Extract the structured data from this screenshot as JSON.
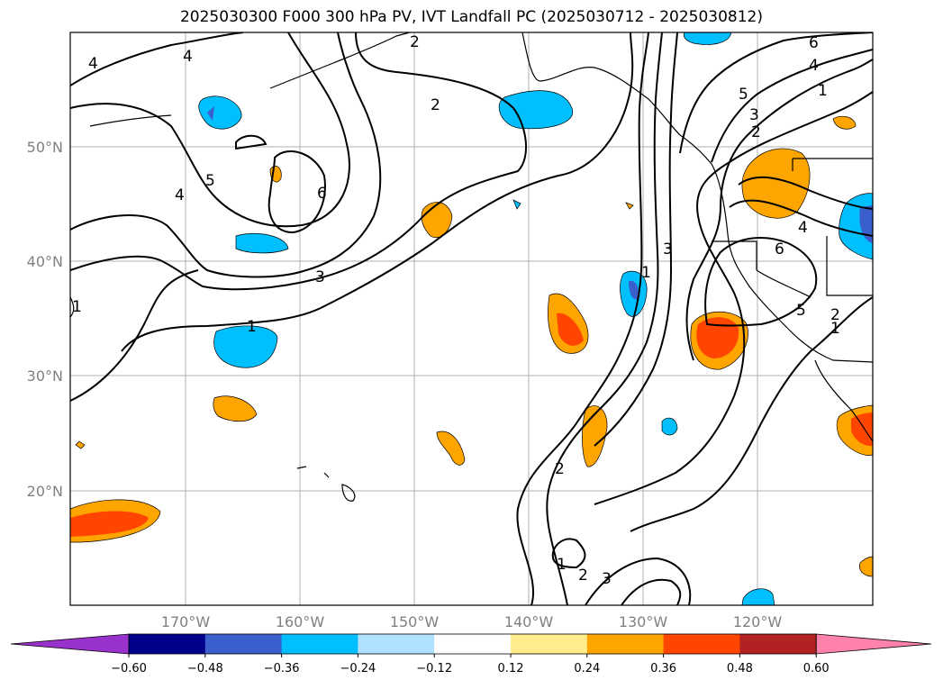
{
  "title": "2025030300 F000 300 hPa PV, IVT Landfall PC (2025030712 - 2025030812)",
  "map": {
    "lat_ticks": [
      "50°N",
      "40°N",
      "30°N",
      "20°N"
    ],
    "lon_ticks": [
      "170°W",
      "160°W",
      "150°W",
      "140°W",
      "130°W",
      "120°W"
    ],
    "extent": {
      "lon": [
        -180,
        -110
      ],
      "lat": [
        10,
        60
      ]
    },
    "grid": true
  },
  "colorbar": {
    "ticks": [
      "−0.60",
      "−0.48",
      "−0.36",
      "−0.24",
      "−0.12",
      "0.12",
      "0.24",
      "0.36",
      "0.48",
      "0.60"
    ],
    "colors": [
      "#9932cc",
      "#00008b",
      "#3a5fcd",
      "#00bfff",
      "#b0e2ff",
      "#ffffff",
      "#ffec8b",
      "#ffa500",
      "#ff4500",
      "#b22222",
      "#ff82ab"
    ]
  },
  "contour_labels": [
    "4",
    "4",
    "5",
    "4",
    "6",
    "2",
    "3",
    "1",
    "1",
    "2",
    "1",
    "3",
    "6",
    "4",
    "1",
    "5",
    "3",
    "2",
    "4",
    "6",
    "5",
    "1",
    "2",
    "2",
    "1",
    "2",
    "3"
  ]
}
